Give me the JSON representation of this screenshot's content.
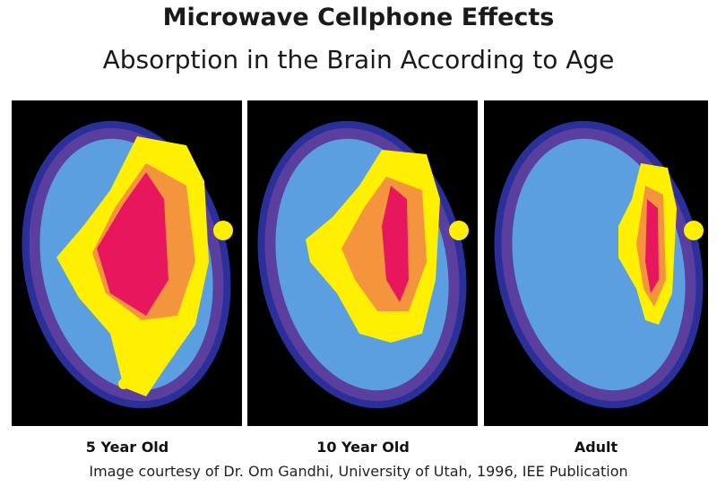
{
  "header": {
    "title": "Microwave Cellphone Effects",
    "subtitle": "Absorption in the Brain According to Age"
  },
  "panels": [
    {
      "label": "5 Year Old"
    },
    {
      "label": "10 Year Old"
    },
    {
      "label": "Adult"
    }
  ],
  "caption": "Image courtesy of Dr. Om Gandhi, University of Utah, 1996, IEE Publication"
}
